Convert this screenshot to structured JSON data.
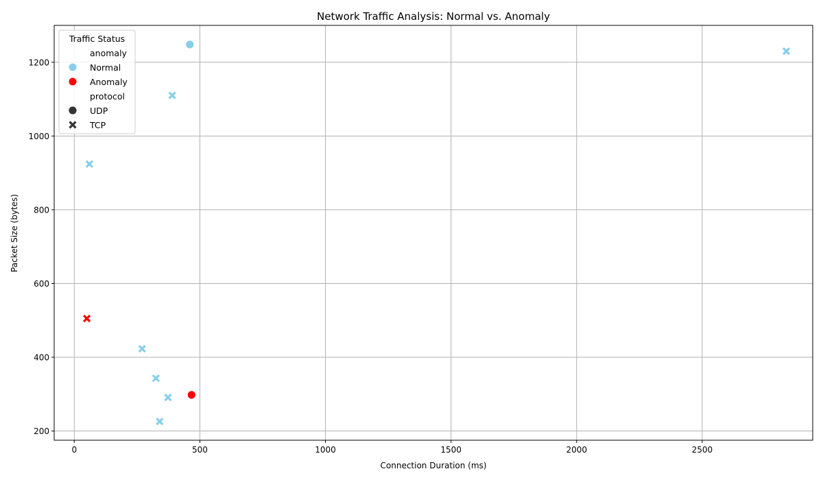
{
  "chart_data": {
    "type": "scatter",
    "title": "Network Traffic Analysis: Normal vs. Anomaly",
    "xlabel": "Connection Duration (ms)",
    "ylabel": "Packet Size (bytes)",
    "xlim": [
      -80,
      2940
    ],
    "ylim": [
      175,
      1300
    ],
    "xticks": [
      0,
      500,
      1000,
      1500,
      2000,
      2500
    ],
    "yticks": [
      200,
      400,
      600,
      800,
      1000,
      1200
    ],
    "grid": true,
    "legend": {
      "title": "Traffic Status",
      "placement": "top-left",
      "entries": [
        {
          "label": "anomaly",
          "kind": "header"
        },
        {
          "label": "Normal",
          "kind": "color",
          "color": "#87ceeb"
        },
        {
          "label": "Anomaly",
          "kind": "color",
          "color": "#ff0000"
        },
        {
          "label": "protocol",
          "kind": "header"
        },
        {
          "label": "UDP",
          "kind": "marker",
          "marker": "circle"
        },
        {
          "label": "TCP",
          "kind": "marker",
          "marker": "x"
        }
      ]
    },
    "colors": {
      "Normal": "#87ceeb",
      "Anomaly": "#ff0000"
    },
    "points": [
      {
        "x": 460,
        "y": 1248,
        "status": "Normal",
        "protocol": "UDP"
      },
      {
        "x": 2835,
        "y": 1230,
        "status": "Normal",
        "protocol": "TCP"
      },
      {
        "x": 390,
        "y": 1110,
        "status": "Normal",
        "protocol": "TCP"
      },
      {
        "x": 60,
        "y": 924,
        "status": "Normal",
        "protocol": "TCP"
      },
      {
        "x": 50,
        "y": 505,
        "status": "Anomaly",
        "protocol": "TCP"
      },
      {
        "x": 270,
        "y": 423,
        "status": "Normal",
        "protocol": "TCP"
      },
      {
        "x": 325,
        "y": 343,
        "status": "Normal",
        "protocol": "TCP"
      },
      {
        "x": 373,
        "y": 291,
        "status": "Normal",
        "protocol": "TCP"
      },
      {
        "x": 467,
        "y": 298,
        "status": "Anomaly",
        "protocol": "UDP"
      },
      {
        "x": 340,
        "y": 226,
        "status": "Normal",
        "protocol": "TCP"
      }
    ]
  }
}
